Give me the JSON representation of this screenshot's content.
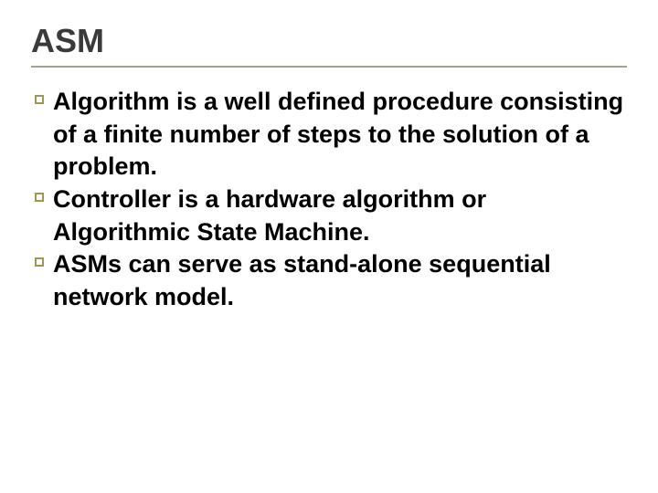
{
  "slide": {
    "title": "ASM",
    "title_fontsize": 36,
    "title_color": "#3a3a3a",
    "divider_color": "#a6a28a",
    "bullets": [
      {
        "text": "Algorithm is a well defined procedure consisting of a finite number of steps to the solution of a problem."
      },
      {
        "text": "Controller is a hardware algorithm or Algorithmic State Machine."
      },
      {
        "text": "ASMs can serve as stand-alone sequential network model."
      }
    ],
    "bullet_fontsize": 27,
    "bullet_font_weight": "bold",
    "bullet_text_color": "#000000",
    "bullet_marker": {
      "size": 10,
      "border_color": "#9c9751",
      "border_width": 2
    },
    "background_color": "#ffffff"
  }
}
